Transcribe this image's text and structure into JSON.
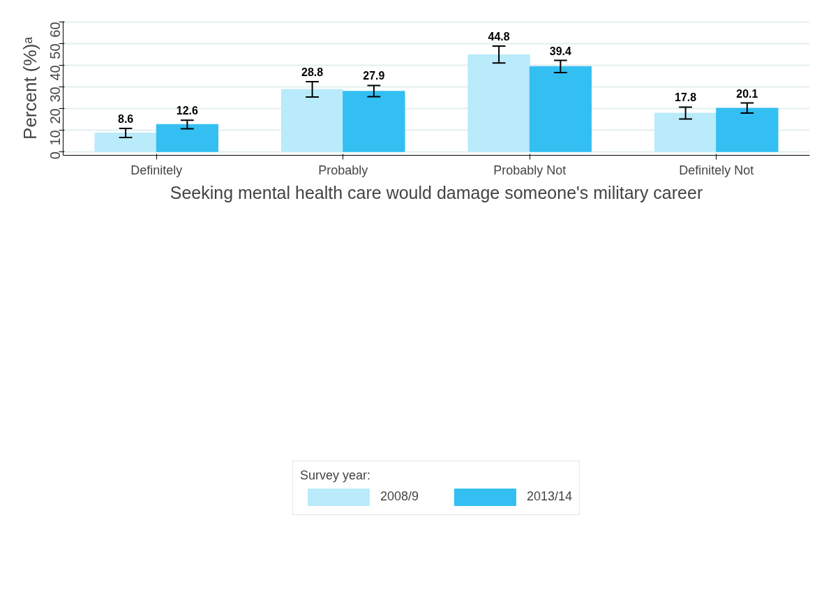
{
  "chart_data": {
    "type": "bar",
    "xlabel": "Seeking mental health care would damage someone's military career",
    "ylabel": "Percent (%)ᵃ",
    "legend_title": "Survey year:",
    "categories": [
      "Definitely",
      "Probably",
      "Probably Not",
      "Definitely Not"
    ],
    "series": [
      {
        "name": "2008/9",
        "color": "#b9ebfb",
        "values": [
          8.6,
          28.8,
          44.8,
          17.8
        ],
        "errors": [
          [
            6.5,
            10.7
          ],
          [
            25.3,
            32.4
          ],
          [
            41.0,
            48.8
          ],
          [
            15.1,
            20.6
          ]
        ]
      },
      {
        "name": "2013/14",
        "color": "#33bff2",
        "values": [
          12.6,
          27.9,
          39.4,
          20.1
        ],
        "errors": [
          [
            10.6,
            14.5
          ],
          [
            25.4,
            30.6
          ],
          [
            36.6,
            42.2
          ],
          [
            17.8,
            22.5
          ]
        ]
      }
    ],
    "ylim": [
      -1.7,
      60.3
    ],
    "yticks": [
      0,
      10,
      20,
      30,
      40,
      50,
      60
    ],
    "grid": "y",
    "legend": "bottom",
    "data_labels": true
  }
}
